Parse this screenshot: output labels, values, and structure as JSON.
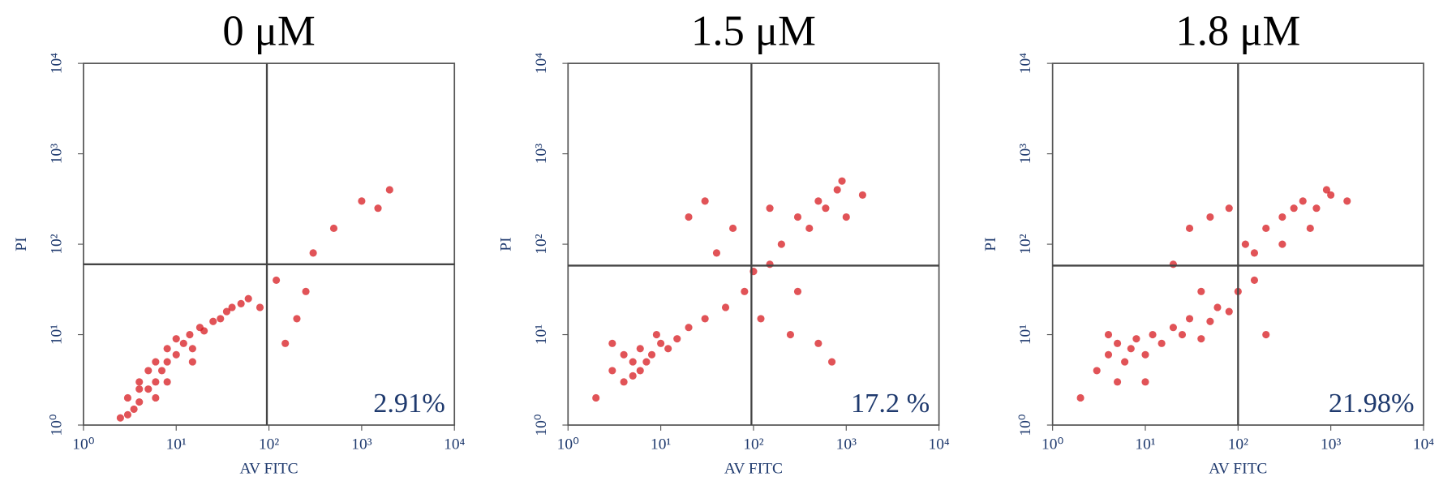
{
  "chart_data": [
    {
      "type": "scatter",
      "title": "0 μM",
      "x_label": "AV FITC",
      "y_label": "PI",
      "annotation": "2.91%",
      "log_x": true,
      "log_y": true,
      "color": "#d7191f",
      "xlim": [
        1,
        10000
      ],
      "ylim": [
        1,
        10000
      ],
      "xticks": [
        {
          "value": 1,
          "label": "10⁰"
        },
        {
          "value": 10,
          "label": "10¹"
        },
        {
          "value": 100,
          "label": "10²"
        },
        {
          "value": 1000,
          "label": "10³"
        },
        {
          "value": 10000,
          "label": "10⁴"
        }
      ],
      "yticks": [
        {
          "value": 1,
          "label": "10⁰"
        },
        {
          "value": 10,
          "label": "10¹"
        },
        {
          "value": 100,
          "label": "10²"
        },
        {
          "value": 1000,
          "label": "10³"
        },
        {
          "value": 10000,
          "label": "10⁴"
        }
      ],
      "quadrant_x": 95,
      "quadrant_y": 60,
      "x": [
        2.5,
        3,
        3.5,
        4,
        4,
        5,
        5,
        6,
        6,
        7,
        8,
        8,
        10,
        10,
        12,
        14,
        15,
        18,
        20,
        25,
        30,
        35,
        40,
        50,
        60,
        8,
        4,
        3,
        6,
        15,
        120,
        200,
        300,
        1000,
        1500,
        2000,
        500,
        150,
        250,
        80
      ],
      "y": [
        1.2,
        2,
        1.5,
        3,
        1.8,
        2.5,
        4,
        3,
        5,
        4,
        5,
        7,
        6,
        9,
        8,
        10,
        7,
        12,
        11,
        14,
        15,
        18,
        20,
        22,
        25,
        3,
        2.5,
        1.3,
        2,
        5,
        40,
        15,
        80,
        300,
        250,
        400,
        150,
        8,
        30,
        20
      ]
    },
    {
      "type": "scatter",
      "title": "1.5 μM",
      "x_label": "AV FITC",
      "y_label": "PI",
      "annotation": "17.2 %",
      "log_x": true,
      "log_y": true,
      "color": "#d7191f",
      "xlim": [
        1,
        10000
      ],
      "ylim": [
        1,
        10000
      ],
      "xticks": [
        {
          "value": 1,
          "label": "10⁰"
        },
        {
          "value": 10,
          "label": "10¹"
        },
        {
          "value": 100,
          "label": "10²"
        },
        {
          "value": 1000,
          "label": "10³"
        },
        {
          "value": 10000,
          "label": "10⁴"
        }
      ],
      "yticks": [
        {
          "value": 1,
          "label": "10⁰"
        },
        {
          "value": 10,
          "label": "10¹"
        },
        {
          "value": 100,
          "label": "10²"
        },
        {
          "value": 1000,
          "label": "10³"
        },
        {
          "value": 10000,
          "label": "10⁴"
        }
      ],
      "quadrant_x": 95,
      "quadrant_y": 58,
      "x": [
        3,
        4,
        4,
        5,
        5,
        6,
        7,
        8,
        10,
        12,
        15,
        20,
        30,
        50,
        80,
        100,
        150,
        200,
        300,
        400,
        500,
        600,
        800,
        1000,
        1500,
        250,
        700,
        60,
        40,
        120,
        300,
        500,
        150,
        900,
        30,
        20,
        2,
        3,
        6,
        9
      ],
      "y": [
        4,
        3,
        6,
        5,
        3.5,
        7,
        5,
        6,
        8,
        7,
        9,
        12,
        15,
        20,
        30,
        50,
        60,
        100,
        200,
        150,
        300,
        250,
        400,
        200,
        350,
        10,
        5,
        150,
        80,
        15,
        30,
        8,
        250,
        500,
        300,
        200,
        2,
        8,
        4,
        10
      ]
    },
    {
      "type": "scatter",
      "title": "1.8 μM",
      "x_label": "AV FITC",
      "y_label": "PI",
      "annotation": "21.98%",
      "log_x": true,
      "log_y": true,
      "color": "#d7191f",
      "xlim": [
        1,
        10000
      ],
      "ylim": [
        1,
        10000
      ],
      "xticks": [
        {
          "value": 1,
          "label": "10⁰"
        },
        {
          "value": 10,
          "label": "10¹"
        },
        {
          "value": 100,
          "label": "10²"
        },
        {
          "value": 1000,
          "label": "10³"
        },
        {
          "value": 10000,
          "label": "10⁴"
        }
      ],
      "yticks": [
        {
          "value": 1,
          "label": "10⁰"
        },
        {
          "value": 10,
          "label": "10¹"
        },
        {
          "value": 100,
          "label": "10²"
        },
        {
          "value": 1000,
          "label": "10³"
        },
        {
          "value": 10000,
          "label": "10⁴"
        }
      ],
      "quadrant_x": 100,
      "quadrant_y": 58,
      "x": [
        3,
        4,
        5,
        5,
        6,
        7,
        8,
        10,
        12,
        15,
        20,
        25,
        30,
        40,
        50,
        60,
        80,
        100,
        150,
        200,
        300,
        400,
        500,
        700,
        1000,
        1500,
        30,
        50,
        80,
        120,
        200,
        20,
        600,
        900,
        300,
        40,
        2,
        4,
        10,
        150
      ],
      "y": [
        4,
        6,
        3,
        8,
        5,
        7,
        9,
        6,
        10,
        8,
        12,
        10,
        15,
        9,
        14,
        20,
        18,
        30,
        80,
        150,
        200,
        250,
        300,
        250,
        350,
        300,
        150,
        200,
        250,
        100,
        10,
        60,
        150,
        400,
        100,
        30,
        2,
        10,
        3,
        40
      ]
    }
  ]
}
